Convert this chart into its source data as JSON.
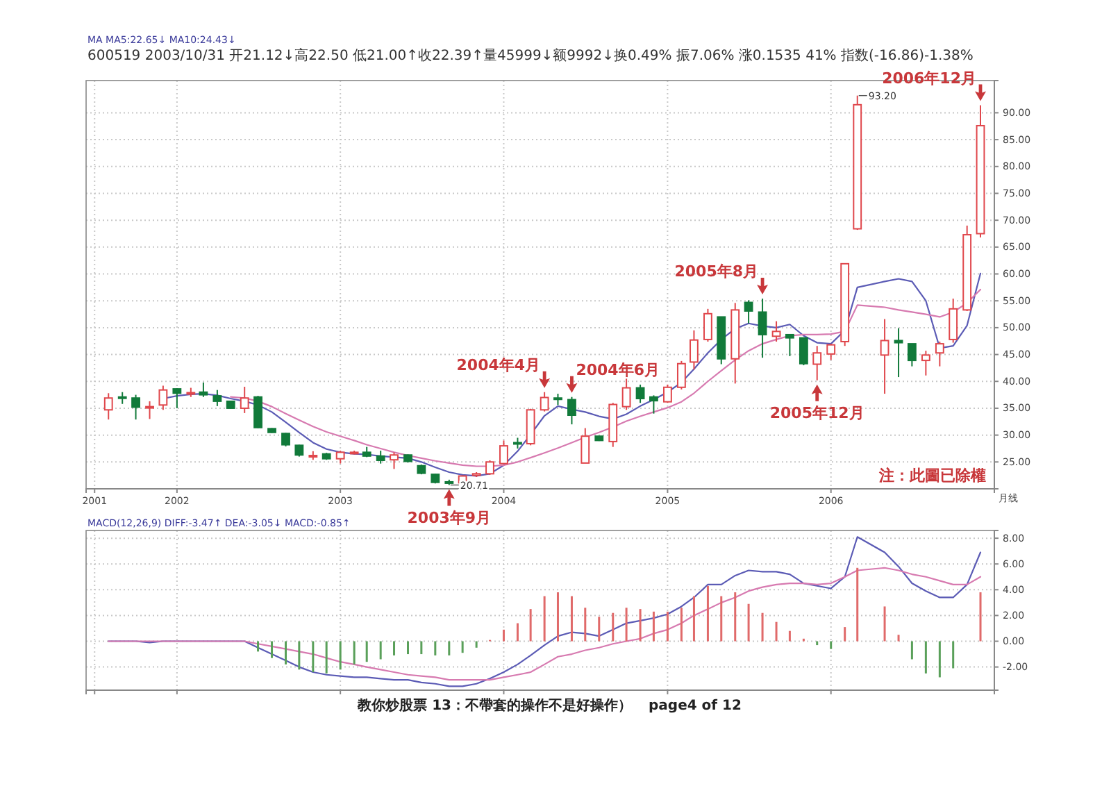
{
  "chart_data": [
    {
      "type": "candlestick",
      "title": "MA MA5:22.65↓ MA10:24.43↓",
      "subtitle": "600519 2003/10/31 开21.12↓高22.50 低21.00↑收22.39↑量45999↓额9992↓换0.49% 振7.06% 涨0.1535 41% 指数(-16.86)-1.38%",
      "x": [
        "2001-08",
        "2001-09",
        "2001-10",
        "2001-11",
        "2001-12",
        "2002-01",
        "2002-02",
        "2002-03",
        "2002-04",
        "2002-05",
        "2002-06",
        "2002-07",
        "2002-08",
        "2002-09",
        "2002-10",
        "2002-11",
        "2002-12",
        "2003-01",
        "2003-02",
        "2003-03",
        "2003-04",
        "2003-05",
        "2003-06",
        "2003-07",
        "2003-08",
        "2003-09",
        "2003-10",
        "2003-11",
        "2003-12",
        "2004-01",
        "2004-02",
        "2004-03",
        "2004-04",
        "2004-05",
        "2004-06",
        "2004-07",
        "2004-08",
        "2004-09",
        "2004-10",
        "2004-11",
        "2004-12",
        "2005-01",
        "2005-02",
        "2005-03",
        "2005-04",
        "2005-05",
        "2005-06",
        "2005-07",
        "2005-08",
        "2005-09",
        "2005-10",
        "2005-11",
        "2005-12",
        "2006-01",
        "2006-02",
        "2006-03",
        "2006-05",
        "2006-06",
        "2006-07",
        "2006-08",
        "2006-09",
        "2006-10",
        "2006-11",
        "2006-12"
      ],
      "ohlc": [
        [
          34.7,
          37.8,
          32.9,
          36.9
        ],
        [
          37.1,
          38.0,
          35.8,
          37.0
        ],
        [
          36.9,
          37.5,
          32.9,
          35.2
        ],
        [
          35.1,
          36.3,
          33.0,
          35.3
        ],
        [
          35.6,
          39.2,
          34.7,
          38.4
        ],
        [
          38.6,
          38.7,
          35.0,
          37.8
        ],
        [
          37.7,
          38.8,
          37.1,
          37.9
        ],
        [
          38.0,
          39.8,
          37.1,
          37.5
        ],
        [
          37.3,
          38.4,
          35.4,
          36.3
        ],
        [
          36.3,
          36.4,
          34.9,
          35.0
        ],
        [
          35.0,
          39.0,
          34.1,
          36.9
        ],
        [
          37.1,
          37.3,
          31.3,
          31.4
        ],
        [
          31.2,
          31.3,
          30.4,
          30.5
        ],
        [
          30.3,
          30.4,
          27.9,
          28.2
        ],
        [
          28.1,
          28.2,
          26.0,
          26.3
        ],
        [
          26.0,
          27.0,
          25.4,
          26.2
        ],
        [
          26.5,
          26.7,
          25.4,
          25.6
        ],
        [
          25.6,
          27.1,
          24.7,
          26.8
        ],
        [
          26.7,
          27.1,
          26.4,
          26.8
        ],
        [
          26.8,
          27.8,
          25.9,
          26.1
        ],
        [
          26.1,
          27.1,
          24.7,
          25.3
        ],
        [
          25.4,
          26.8,
          23.7,
          26.3
        ],
        [
          26.3,
          26.4,
          24.9,
          25.1
        ],
        [
          24.3,
          24.5,
          22.7,
          22.9
        ],
        [
          22.7,
          22.8,
          21.0,
          21.2
        ],
        [
          21.3,
          21.7,
          20.71,
          21.1
        ],
        [
          21.12,
          22.5,
          21.0,
          22.39
        ],
        [
          22.5,
          23.1,
          22.2,
          22.8
        ],
        [
          22.8,
          25.3,
          22.6,
          25.0
        ],
        [
          24.7,
          29.0,
          24.6,
          28.0
        ],
        [
          28.6,
          29.5,
          27.5,
          28.5
        ],
        [
          28.4,
          34.9,
          28.1,
          34.7
        ],
        [
          34.7,
          38.0,
          34.4,
          37.0
        ],
        [
          36.9,
          37.7,
          35.6,
          36.8
        ],
        [
          36.6,
          37.1,
          32.0,
          33.7
        ],
        [
          24.8,
          31.3,
          24.8,
          29.8
        ],
        [
          29.8,
          29.9,
          28.9,
          29.0
        ],
        [
          28.8,
          36.0,
          27.8,
          35.7
        ],
        [
          35.3,
          40.5,
          34.7,
          38.8
        ],
        [
          38.8,
          39.4,
          36.0,
          36.8
        ],
        [
          37.1,
          37.4,
          34.0,
          36.4
        ],
        [
          36.2,
          39.4,
          36.0,
          38.9
        ],
        [
          38.9,
          43.8,
          38.5,
          43.3
        ],
        [
          43.6,
          49.5,
          42.2,
          47.7
        ],
        [
          47.8,
          53.5,
          47.4,
          52.6
        ],
        [
          52.0,
          52.0,
          43.2,
          44.2
        ],
        [
          44.2,
          54.6,
          39.6,
          53.3
        ],
        [
          54.7,
          55.1,
          50.8,
          53.1
        ],
        [
          52.9,
          55.4,
          44.4,
          48.7
        ],
        [
          48.4,
          51.2,
          47.4,
          49.3
        ],
        [
          48.7,
          48.7,
          44.7,
          48.1
        ],
        [
          48.1,
          48.1,
          43.0,
          43.3
        ],
        [
          43.2,
          46.6,
          40.2,
          45.3
        ],
        [
          45.1,
          47.0,
          44.0,
          46.8
        ],
        [
          47.4,
          61.9,
          46.6,
          61.9
        ],
        [
          68.4,
          93.2,
          68.2,
          91.5
        ],
        [
          44.9,
          51.6,
          37.7,
          47.6
        ],
        [
          47.6,
          49.9,
          40.8,
          47.2
        ],
        [
          47.0,
          47.0,
          42.8,
          43.9
        ],
        [
          43.9,
          45.7,
          41.1,
          44.9
        ],
        [
          45.3,
          47.4,
          42.8,
          47.0
        ],
        [
          47.8,
          55.4,
          47.2,
          53.5
        ],
        [
          53.3,
          69.0,
          53.1,
          67.3
        ],
        [
          67.5,
          91.4,
          66.8,
          87.6
        ]
      ],
      "colors": [
        "#e0474c",
        "#117a3a",
        "#117a3a",
        "#e0474c",
        "#e0474c",
        "#117a3a",
        "#e0474c",
        "#117a3a",
        "#117a3a",
        "#117a3a",
        "#e0474c",
        "#117a3a",
        "#117a3a",
        "#117a3a",
        "#117a3a",
        "#e0474c",
        "#117a3a",
        "#e0474c",
        "#e0474c",
        "#117a3a",
        "#117a3a",
        "#e0474c",
        "#117a3a",
        "#117a3a",
        "#117a3a",
        "#117a3a",
        "#e0474c",
        "#e0474c",
        "#e0474c",
        "#e0474c",
        "#117a3a",
        "#e0474c",
        "#e0474c",
        "#117a3a",
        "#117a3a",
        "#e0474c",
        "#117a3a",
        "#e0474c",
        "#e0474c",
        "#117a3a",
        "#117a3a",
        "#e0474c",
        "#e0474c",
        "#e0474c",
        "#e0474c",
        "#117a3a",
        "#e0474c",
        "#117a3a",
        "#117a3a",
        "#e0474c",
        "#117a3a",
        "#117a3a",
        "#e0474c",
        "#e0474c",
        "#e0474c",
        "#e0474c",
        "#e0474c",
        "#117a3a",
        "#117a3a",
        "#e0474c",
        "#e0474c",
        "#e0474c",
        "#e0474c",
        "#e0474c"
      ],
      "value_labels": [
        null,
        null,
        null,
        null,
        null,
        null,
        null,
        null,
        null,
        null,
        null,
        null,
        null,
        null,
        null,
        null,
        null,
        null,
        null,
        null,
        null,
        null,
        null,
        null,
        null,
        "20.71",
        null,
        null,
        null,
        null,
        null,
        null,
        null,
        null,
        null,
        null,
        null,
        null,
        null,
        null,
        null,
        null,
        null,
        null,
        null,
        null,
        null,
        null,
        null,
        null,
        null,
        null,
        null,
        null,
        null,
        "93.20",
        null,
        null,
        null,
        null,
        null,
        null,
        null,
        null
      ],
      "series": [
        {
          "type": "line",
          "color": "#5b5bb5",
          "x": [
            "2001-12",
            "2002-01",
            "2002-02",
            "2002-03",
            "2002-04",
            "2002-05",
            "2002-06",
            "2002-07",
            "2002-08",
            "2002-09",
            "2002-10",
            "2002-11",
            "2002-12",
            "2003-01",
            "2003-02",
            "2003-03",
            "2003-04",
            "2003-05",
            "2003-06",
            "2003-07",
            "2003-08",
            "2003-09",
            "2003-10",
            "2003-11",
            "2003-12",
            "2004-01",
            "2004-02",
            "2004-03",
            "2004-04",
            "2004-05",
            "2004-06",
            "2004-07",
            "2004-08",
            "2004-09",
            "2004-10",
            "2004-11",
            "2004-12",
            "2005-01",
            "2005-02",
            "2005-03",
            "2005-04",
            "2005-05",
            "2005-06",
            "2005-07",
            "2005-08",
            "2005-09",
            "2005-10",
            "2005-11",
            "2005-12",
            "2006-01",
            "2006-02",
            "2006-03",
            "2006-05",
            "2006-06",
            "2006-07",
            "2006-08",
            "2006-09",
            "2006-10",
            "2006-11",
            "2006-12"
          ],
          "values": [
            36.8,
            37.3,
            37.6,
            37.7,
            37.4,
            36.8,
            36.3,
            35.6,
            34.3,
            32.4,
            30.5,
            28.6,
            27.4,
            26.8,
            26.5,
            26.4,
            26.1,
            25.9,
            25.7,
            25.0,
            24.0,
            23.1,
            22.6,
            22.4,
            22.8,
            24.4,
            27.0,
            30.1,
            33.6,
            35.4,
            34.8,
            34.3,
            33.5,
            33.0,
            33.9,
            35.4,
            36.6,
            38.0,
            39.8,
            42.3,
            45.3,
            47.8,
            49.8,
            50.8,
            50.3,
            50.0,
            50.6,
            48.5,
            47.2,
            47.0,
            49.5,
            57.5,
            58.6,
            59.1,
            58.6,
            55.0,
            46.2,
            46.6,
            50.4,
            60.1
          ]
        },
        {
          "type": "line",
          "color": "#d77ab0",
          "x": [
            "2002-05",
            "2002-06",
            "2002-07",
            "2002-08",
            "2002-09",
            "2002-10",
            "2002-11",
            "2002-12",
            "2003-01",
            "2003-02",
            "2003-03",
            "2003-04",
            "2003-05",
            "2003-06",
            "2003-07",
            "2003-08",
            "2003-09",
            "2003-10",
            "2003-11",
            "2003-12",
            "2004-01",
            "2004-02",
            "2004-03",
            "2004-04",
            "2004-05",
            "2004-06",
            "2004-07",
            "2004-08",
            "2004-09",
            "2004-10",
            "2004-11",
            "2004-12",
            "2005-01",
            "2005-02",
            "2005-03",
            "2005-04",
            "2005-05",
            "2005-06",
            "2005-07",
            "2005-08",
            "2005-09",
            "2005-10",
            "2005-11",
            "2005-12",
            "2006-01",
            "2006-02",
            "2006-03",
            "2006-05",
            "2006-06",
            "2006-07",
            "2006-08",
            "2006-09",
            "2006-10",
            "2006-11",
            "2006-12"
          ],
          "values": [
            37.1,
            36.9,
            36.3,
            35.3,
            34.0,
            32.8,
            31.6,
            30.6,
            29.8,
            29.0,
            28.2,
            27.5,
            26.8,
            26.2,
            25.7,
            25.2,
            24.8,
            24.4,
            24.2,
            24.2,
            24.4,
            25.0,
            25.8,
            26.7,
            27.6,
            28.6,
            29.6,
            30.5,
            31.5,
            32.6,
            33.5,
            34.3,
            35.1,
            36.2,
            37.8,
            40.0,
            42.0,
            44.0,
            45.7,
            47.0,
            47.8,
            48.5,
            48.7,
            48.7,
            48.8,
            49.3,
            54.2,
            53.8,
            53.3,
            52.9,
            52.5,
            52.0,
            52.9,
            54.6,
            57.1
          ]
        }
      ],
      "xlim": [
        "2001-06-12",
        "2007-01-01"
      ],
      "xticks": [
        {
          "value": "2001-07",
          "label": "2001"
        },
        "2002",
        "2003",
        "2004",
        "2005",
        "2006"
      ],
      "ylim": [
        20,
        96
      ],
      "yticks": [
        {
          "value": 25,
          "label": "25.00"
        },
        {
          "value": 30,
          "label": "30.00"
        },
        {
          "value": 35,
          "label": "35.00"
        },
        {
          "value": 40,
          "label": "40.00"
        },
        {
          "value": 45,
          "label": "45.00"
        },
        {
          "value": 50,
          "label": "50.00"
        },
        {
          "value": 55,
          "label": "55.00"
        },
        {
          "value": 60,
          "label": "60.00"
        },
        {
          "value": 65,
          "label": "65.00"
        },
        {
          "value": 70,
          "label": "70.00"
        },
        {
          "value": 75,
          "label": "75.00"
        },
        {
          "value": 80,
          "label": "80.00"
        },
        {
          "value": 85,
          "label": "85.00"
        },
        {
          "value": 90,
          "label": "90.00"
        }
      ],
      "grid": true,
      "annotations": [
        "注：此圖已除權",
        "月线",
        {
          "text": "2003年9月",
          "x": "2003-09",
          "y": 20.71
        },
        {
          "text": "2004年4月",
          "x": "2004-04",
          "y": 38.0
        },
        {
          "text": "2004年6月",
          "x": "2004-06",
          "y": 37.1
        },
        {
          "text": "2005年8月",
          "x": "2005-08",
          "y": 55.4
        },
        {
          "text": "2005年12月",
          "x": "2005-12",
          "y": 40.2
        },
        {
          "text": "2006年12月",
          "x": "2006-12",
          "y": 91.4
        }
      ]
    },
    {
      "type": "bar",
      "title": "MACD(12,26,9) DIFF:-3.47↑ DEA:-3.05↓ MACD:-0.85↑",
      "x": [
        "2001-08",
        "2001-09",
        "2001-10",
        "2001-11",
        "2001-12",
        "2002-01",
        "2002-02",
        "2002-03",
        "2002-04",
        "2002-05",
        "2002-06",
        "2002-07",
        "2002-08",
        "2002-09",
        "2002-10",
        "2002-11",
        "2002-12",
        "2003-01",
        "2003-02",
        "2003-03",
        "2003-04",
        "2003-05",
        "2003-06",
        "2003-07",
        "2003-08",
        "2003-09",
        "2003-10",
        "2003-11",
        "2003-12",
        "2004-01",
        "2004-02",
        "2004-03",
        "2004-04",
        "2004-05",
        "2004-06",
        "2004-07",
        "2004-08",
        "2004-09",
        "2004-10",
        "2004-11",
        "2004-12",
        "2005-01",
        "2005-02",
        "2005-03",
        "2005-04",
        "2005-05",
        "2005-06",
        "2005-07",
        "2005-08",
        "2005-09",
        "2005-10",
        "2005-11",
        "2005-12",
        "2006-01",
        "2006-02",
        "2006-03",
        "2006-05",
        "2006-06",
        "2006-07",
        "2006-08",
        "2006-09",
        "2006-10",
        "2006-11",
        "2006-12"
      ],
      "values": [
        null,
        null,
        null,
        null,
        null,
        null,
        null,
        null,
        null,
        null,
        null,
        -0.8,
        -1.3,
        -1.8,
        -2.2,
        -2.4,
        -2.5,
        -2.2,
        -1.8,
        -1.6,
        -1.4,
        -1.1,
        -1.0,
        -1.0,
        -1.1,
        -1.1,
        -0.9,
        -0.5,
        0.1,
        0.9,
        1.4,
        2.5,
        3.5,
        3.8,
        3.5,
        2.6,
        1.9,
        2.2,
        2.6,
        2.5,
        2.3,
        2.3,
        2.6,
        3.5,
        4.3,
        3.5,
        3.8,
        2.9,
        2.2,
        1.5,
        0.8,
        0.2,
        -0.3,
        -0.6,
        1.1,
        5.7,
        2.7,
        0.5,
        -1.4,
        -2.5,
        -2.8,
        -2.1,
        null,
        3.8
      ],
      "colors": [
        null,
        null,
        null,
        null,
        null,
        null,
        null,
        null,
        null,
        null,
        null,
        "#5aa05a",
        "#5aa05a",
        "#5aa05a",
        "#5aa05a",
        "#5aa05a",
        "#5aa05a",
        "#5aa05a",
        "#5aa05a",
        "#5aa05a",
        "#5aa05a",
        "#5aa05a",
        "#5aa05a",
        "#5aa05a",
        "#5aa05a",
        "#5aa05a",
        "#5aa05a",
        "#5aa05a",
        "#e06a6a",
        "#e06a6a",
        "#e06a6a",
        "#e06a6a",
        "#e06a6a",
        "#e06a6a",
        "#e06a6a",
        "#e06a6a",
        "#e06a6a",
        "#e06a6a",
        "#e06a6a",
        "#e06a6a",
        "#e06a6a",
        "#e06a6a",
        "#e06a6a",
        "#e06a6a",
        "#e06a6a",
        "#e06a6a",
        "#e06a6a",
        "#e06a6a",
        "#e06a6a",
        "#e06a6a",
        "#e06a6a",
        "#e06a6a",
        "#5aa05a",
        "#5aa05a",
        "#e06a6a",
        "#e06a6a",
        "#e06a6a",
        "#e06a6a",
        "#5aa05a",
        "#5aa05a",
        "#5aa05a",
        "#5aa05a",
        null,
        "#e06a6a"
      ],
      "series": [
        {
          "type": "line",
          "color": "#5b5bb5",
          "values": [
            0,
            0,
            0,
            -0.1,
            0,
            0,
            0,
            0,
            0,
            0,
            0,
            -0.5,
            -1.0,
            -1.5,
            -2.0,
            -2.4,
            -2.6,
            -2.7,
            -2.8,
            -2.8,
            -2.9,
            -3.0,
            -3.0,
            -3.2,
            -3.3,
            -3.5,
            -3.5,
            -3.3,
            -2.9,
            -2.4,
            -1.8,
            -1.1,
            -0.3,
            0.4,
            0.7,
            0.6,
            0.4,
            0.9,
            1.4,
            1.6,
            1.8,
            2.1,
            2.7,
            3.4,
            4.4,
            4.4,
            5.1,
            5.5,
            5.4,
            5.4,
            5.2,
            4.5,
            4.3,
            4.1,
            5.0,
            8.1,
            6.9,
            5.8,
            4.5,
            3.9,
            3.4,
            3.4,
            4.4,
            6.9
          ]
        },
        {
          "type": "line",
          "color": "#d77ab0",
          "values": [
            0,
            0,
            0,
            0,
            0,
            0,
            0,
            0,
            0,
            0,
            0,
            -0.2,
            -0.4,
            -0.6,
            -0.8,
            -1.0,
            -1.3,
            -1.6,
            -1.8,
            -2.0,
            -2.2,
            -2.4,
            -2.6,
            -2.7,
            -2.8,
            -3.0,
            -3.0,
            -3.0,
            -3.0,
            -2.8,
            -2.6,
            -2.4,
            -1.8,
            -1.2,
            -1.0,
            -0.7,
            -0.5,
            -0.2,
            0,
            0.2,
            0.6,
            0.9,
            1.4,
            2.0,
            2.5,
            3.0,
            3.4,
            3.9,
            4.2,
            4.4,
            4.5,
            4.5,
            4.4,
            4.5,
            5.0,
            5.5,
            5.7,
            5.5,
            5.2,
            5.0,
            4.7,
            4.4,
            4.4,
            5.0
          ]
        }
      ],
      "xlim": [
        "2001-06-12",
        "2007-01-01"
      ],
      "xticks": [
        {
          "value": "2001-07",
          "label": null
        },
        {
          "value": "2002",
          "label": null
        },
        {
          "value": "2003",
          "label": null
        },
        {
          "value": "2004",
          "label": null
        },
        {
          "value": "2005",
          "label": null
        },
        {
          "value": "2006",
          "label": null
        }
      ],
      "ylim": [
        -3.8,
        8.6
      ],
      "yticks": [
        {
          "value": -2,
          "label": "-2.00"
        },
        {
          "value": 0,
          "label": "0.00"
        },
        {
          "value": 2,
          "label": "2.00"
        },
        {
          "value": 4,
          "label": "4.00"
        },
        {
          "value": 6,
          "label": "6.00"
        },
        {
          "value": 8,
          "label": "8.00"
        }
      ],
      "tick_labels": "y",
      "grid": true,
      "annotations": [
        "教你炒股票 13：不帶套的操作不是好操作）",
        "page4 of 12"
      ]
    }
  ]
}
